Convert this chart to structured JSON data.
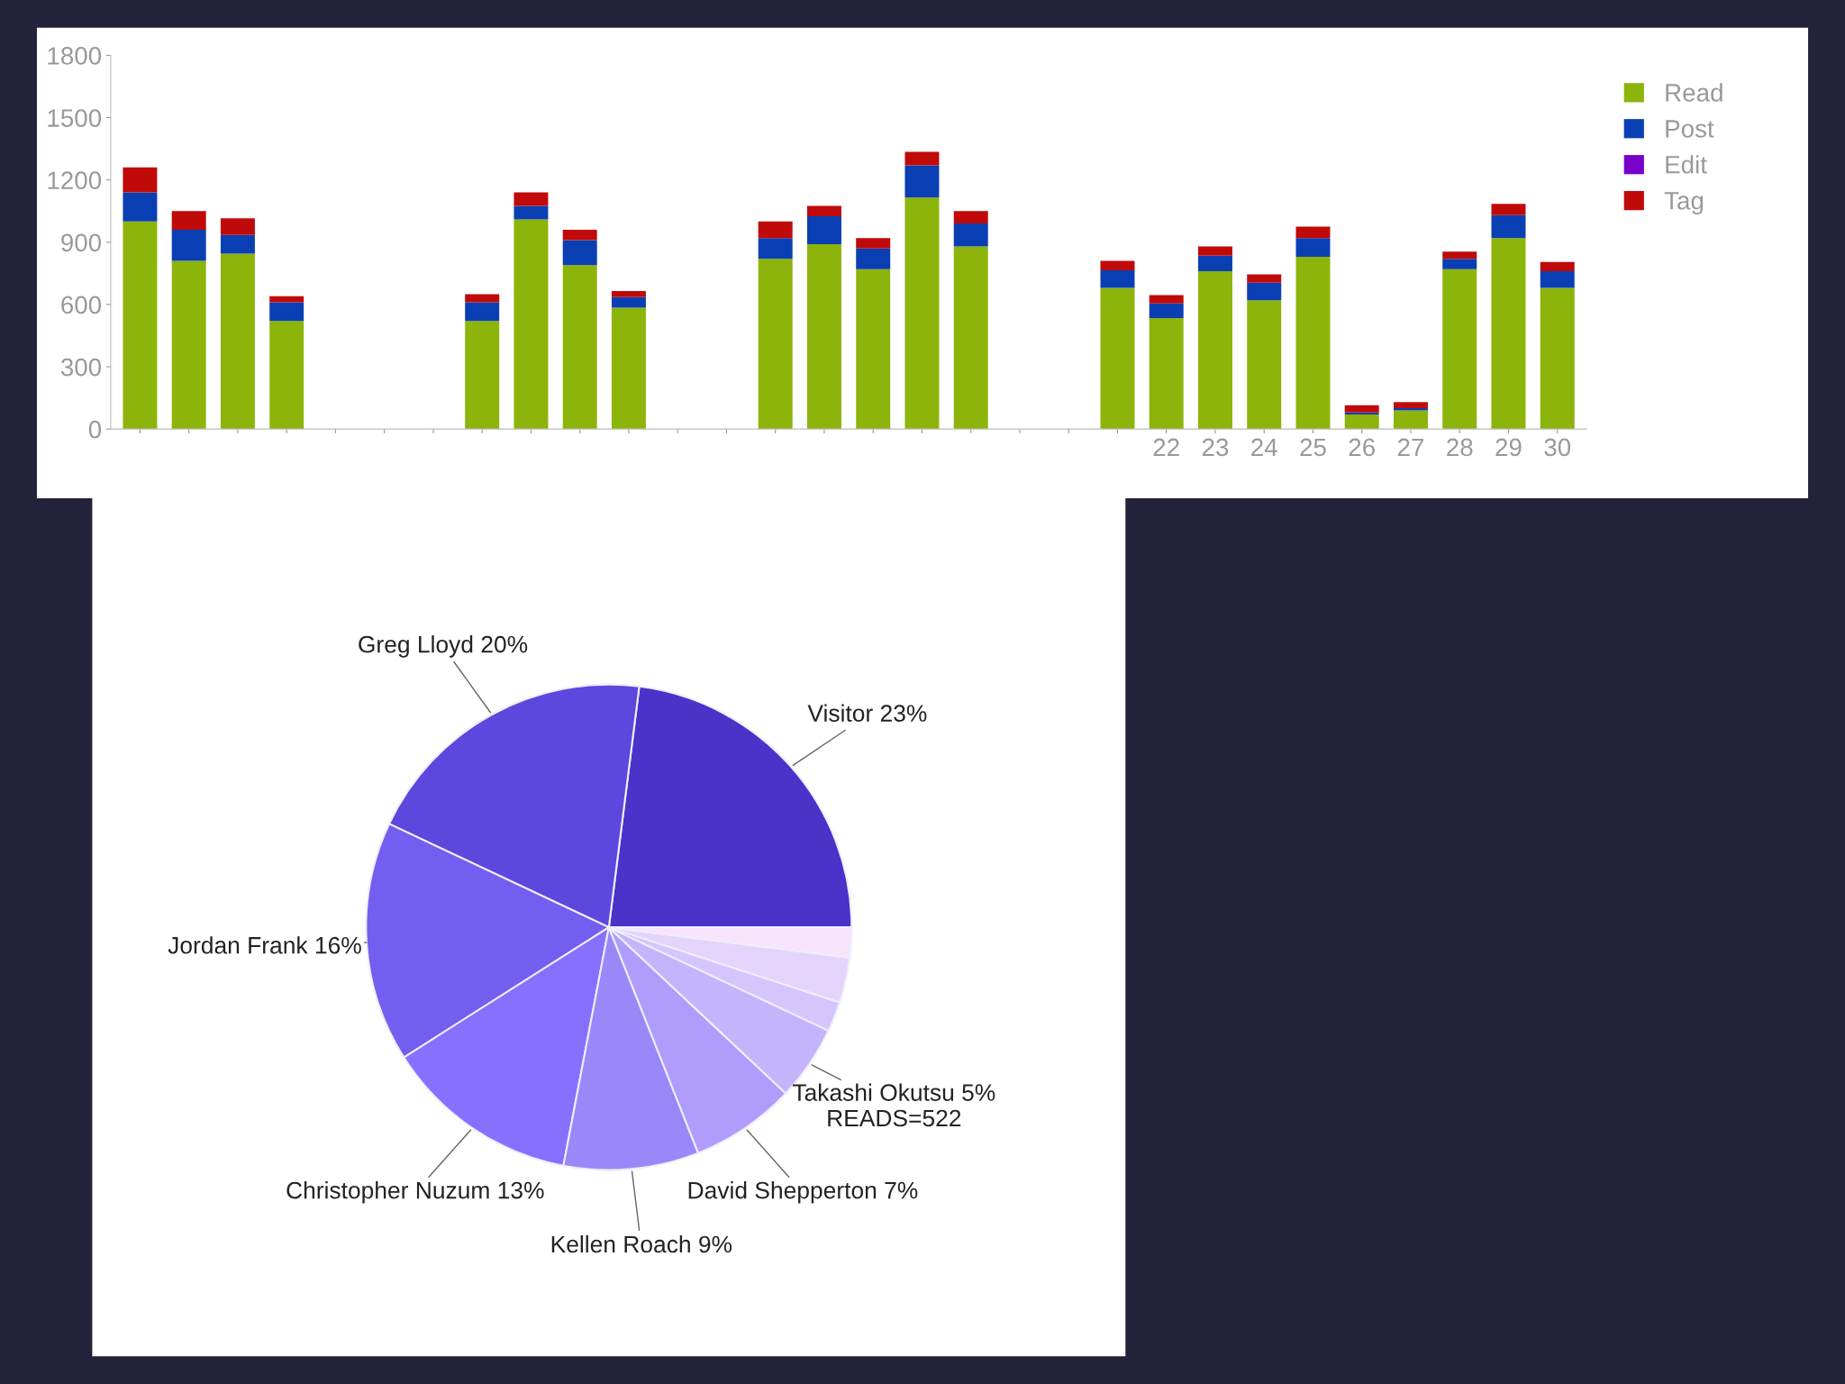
{
  "chart_data": [
    {
      "type": "bar",
      "stacked": true,
      "legend": "right",
      "grid": false,
      "categories": [
        null,
        null,
        null,
        null,
        null,
        null,
        null,
        null,
        null,
        null,
        null,
        null,
        null,
        null,
        null,
        null,
        null,
        null,
        null,
        null,
        null,
        "22",
        "23",
        "24",
        "25",
        "26",
        "27",
        "28",
        "29",
        "30"
      ],
      "ylim": [
        0,
        1800
      ],
      "yticks": [
        0,
        300,
        600,
        900,
        1200,
        1500,
        1800
      ],
      "series": [
        {
          "name": "Read",
          "color": "#8cb40a",
          "values": [
            1000,
            810,
            845,
            520,
            null,
            null,
            null,
            520,
            1010,
            790,
            585,
            null,
            null,
            820,
            890,
            770,
            1115,
            880,
            null,
            null,
            680,
            535,
            760,
            620,
            830,
            70,
            90,
            770,
            920,
            680
          ]
        },
        {
          "name": "Post",
          "color": "#0a3fb4",
          "values": [
            140,
            150,
            90,
            90,
            null,
            null,
            null,
            90,
            65,
            120,
            50,
            null,
            null,
            100,
            135,
            100,
            155,
            110,
            null,
            null,
            85,
            70,
            75,
            85,
            90,
            10,
            10,
            50,
            110,
            80
          ]
        },
        {
          "name": "Edit",
          "color": "#7a00cc",
          "values": [
            0,
            0,
            0,
            0,
            null,
            null,
            null,
            0,
            0,
            0,
            0,
            null,
            null,
            0,
            0,
            0,
            0,
            0,
            null,
            null,
            0,
            0,
            0,
            0,
            0,
            0,
            0,
            0,
            0,
            0
          ]
        },
        {
          "name": "Tag",
          "color": "#c00a0a",
          "values": [
            120,
            90,
            80,
            30,
            null,
            null,
            null,
            40,
            65,
            50,
            30,
            null,
            null,
            80,
            50,
            50,
            65,
            60,
            null,
            null,
            45,
            40,
            45,
            40,
            55,
            35,
            30,
            35,
            55,
            45
          ]
        }
      ]
    },
    {
      "type": "pie",
      "categories": [
        "Visitor",
        "Greg Lloyd",
        "Jordan Frank",
        "Christopher Nuzum",
        "Kellen Roach",
        "David Shepperton",
        "Takashi Okutsu",
        null,
        null,
        null
      ],
      "values": [
        23,
        20,
        16,
        13,
        9,
        7,
        5,
        2,
        3,
        2
      ],
      "value_labels": [
        "23%",
        "20%",
        "16%",
        "13%",
        "9%",
        "7%",
        "5%\nREADS=522",
        null,
        null,
        null
      ],
      "colors": [
        "#4b32c8",
        "#5c48dc",
        "#735ef0",
        "#8870ff",
        "#9a88f8",
        "#b09cfa",
        "#c4b4fc",
        "#d4c6fc",
        "#e4d4fc",
        "#f8e4fc"
      ]
    }
  ]
}
